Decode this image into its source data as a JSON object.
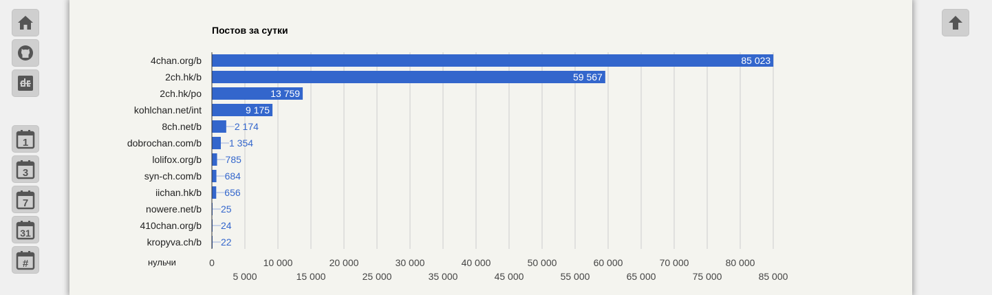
{
  "nav": {
    "left": [
      {
        "name": "home-icon",
        "label": ""
      },
      {
        "name": "github-icon",
        "label": ""
      },
      {
        "name": "dollchan-icon",
        "label": ""
      },
      {
        "name": "calendar-1-icon",
        "label": "1"
      },
      {
        "name": "calendar-3-icon",
        "label": "3"
      },
      {
        "name": "calendar-7-icon",
        "label": "7"
      },
      {
        "name": "calendar-31-icon",
        "label": "31"
      },
      {
        "name": "calendar-hash-icon",
        "label": "#"
      }
    ],
    "right": [
      {
        "name": "arrow-up-icon",
        "label": ""
      }
    ]
  },
  "chart_data": {
    "type": "bar",
    "orientation": "horizontal",
    "title": "Постов за сутки",
    "xlabel": "нульчи",
    "categories": [
      "4chan.org/b",
      "2ch.hk/b",
      "2ch.hk/po",
      "kohlchan.net/int",
      "8ch.net/b",
      "dobrochan.com/b",
      "lolifox.org/b",
      "syn-ch.com/b",
      "iichan.hk/b",
      "nowere.net/b",
      "410chan.org/b",
      "kropyva.ch/b"
    ],
    "values": [
      85023,
      59567,
      13759,
      9175,
      2174,
      1354,
      785,
      684,
      656,
      25,
      24,
      22
    ],
    "value_labels": [
      "85 023",
      "59 567",
      "13 759",
      "9 175",
      "2 174",
      "1 354",
      "785",
      "684",
      "656",
      "25",
      "24",
      "22"
    ],
    "xlim": [
      0,
      85000
    ],
    "ticks_row1": [
      0,
      10000,
      20000,
      30000,
      40000,
      50000,
      60000,
      70000,
      80000
    ],
    "ticks_row1_labels": [
      "0",
      "10 000",
      "20 000",
      "30 000",
      "40 000",
      "50 000",
      "60 000",
      "70 000",
      "80 000"
    ],
    "ticks_row2": [
      5000,
      15000,
      25000,
      35000,
      45000,
      55000,
      65000,
      75000,
      85000
    ],
    "ticks_row2_labels": [
      "5 000",
      "15 000",
      "25 000",
      "35 000",
      "45 000",
      "55 000",
      "65 000",
      "75 000",
      "85 000"
    ],
    "grid": true,
    "bar_color": "#3366cc",
    "grid_color": "#cccccc"
  }
}
